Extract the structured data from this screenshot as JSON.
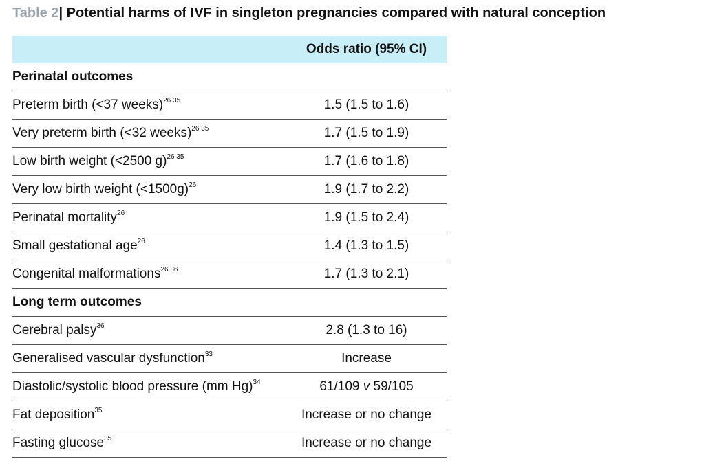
{
  "caption": {
    "label": "Table 2",
    "separator": "|",
    "title": " Potential harms of IVF in singleton pregnancies compared with natural conception"
  },
  "header": {
    "outcome": "",
    "odds_ratio": "Odds ratio (95% CI)"
  },
  "sections": [
    {
      "title": "Perinatal outcomes",
      "rows": [
        {
          "name": "Preterm birth (<37 weeks)",
          "refs": "26 35",
          "value": "1.5 (1.5 to 1.6)"
        },
        {
          "name": "Very preterm birth (<32 weeks)",
          "refs": "26 35",
          "value": "1.7 (1.5 to 1.9)"
        },
        {
          "name": "Low birth weight (<2500 g)",
          "refs": "26 35",
          "value": "1.7 (1.6 to 1.8)"
        },
        {
          "name": "Very low birth weight (<1500g)",
          "refs": "26",
          "value": "1.9 (1.7 to 2.2)"
        },
        {
          "name": "Perinatal mortality",
          "refs": "26",
          "value": "1.9 (1.5 to 2.4)"
        },
        {
          "name": "Small gestational age",
          "refs": "26",
          "value": "1.4 (1.3 to 1.5)"
        },
        {
          "name": "Congenital malformations",
          "refs": "26 36",
          "value": "1.7 (1.3 to 2.1)"
        }
      ]
    },
    {
      "title": "Long term outcomes",
      "rows": [
        {
          "name": "Cerebral palsy",
          "refs": "36",
          "value": "2.8 (1.3 to 16)"
        },
        {
          "name": "Generalised vascular dysfunction",
          "refs": "33",
          "value": "Increase"
        },
        {
          "name": "Diastolic/systolic blood pressure (mm Hg)",
          "refs": "34",
          "value_a": "61/109 ",
          "value_v": "v",
          "value_b": " 59/105"
        },
        {
          "name": "Fat deposition",
          "refs": "35",
          "value": "Increase or no change"
        },
        {
          "name": "Fasting glucose",
          "refs": "35",
          "value": "Increase or no change"
        }
      ]
    }
  ]
}
